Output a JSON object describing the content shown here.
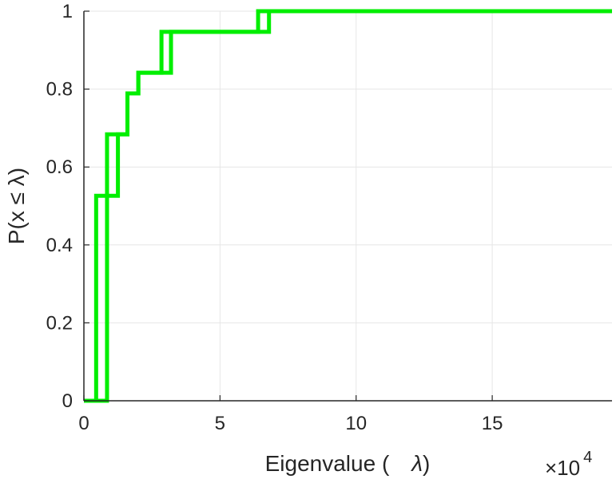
{
  "chart_data": {
    "type": "line",
    "title": "",
    "xlabel": "Eigenvalue (",
    "xlabel_symbol": "λ",
    "xlabel_close": ")",
    "ylabel": "P(x ≤ λ)",
    "x_multiplier": {
      "base": "×10",
      "exponent": "4"
    },
    "xlim": [
      0,
      19.4
    ],
    "ylim": [
      0,
      1
    ],
    "x_ticks": [
      0,
      5,
      10,
      15
    ],
    "x_tick_labels": [
      "0",
      "5",
      "10",
      "15"
    ],
    "y_ticks": [
      0,
      0.2,
      0.4,
      0.6,
      0.8,
      1
    ],
    "y_tick_labels": [
      "0",
      "0.2",
      "0.4",
      "0.6",
      "0.8",
      "1"
    ],
    "grid": true,
    "step": true,
    "colors": {
      "series": "#00ee00",
      "grid": "#e6e6e6",
      "axis": "#262626"
    },
    "series": [
      {
        "x": [
          0,
          0.45,
          1.25,
          1.6,
          2.0,
          3.2,
          6.8,
          19.4
        ],
        "y": [
          0,
          0.526,
          0.684,
          0.789,
          0.842,
          0.947,
          1.0,
          1.0
        ]
      },
      {
        "x": [
          0,
          0.85,
          0.85,
          1.6,
          2.0,
          2.85,
          6.4,
          19.4
        ],
        "y": [
          0,
          0.526,
          0.684,
          0.789,
          0.842,
          0.947,
          1.0,
          1.0
        ]
      }
    ]
  }
}
